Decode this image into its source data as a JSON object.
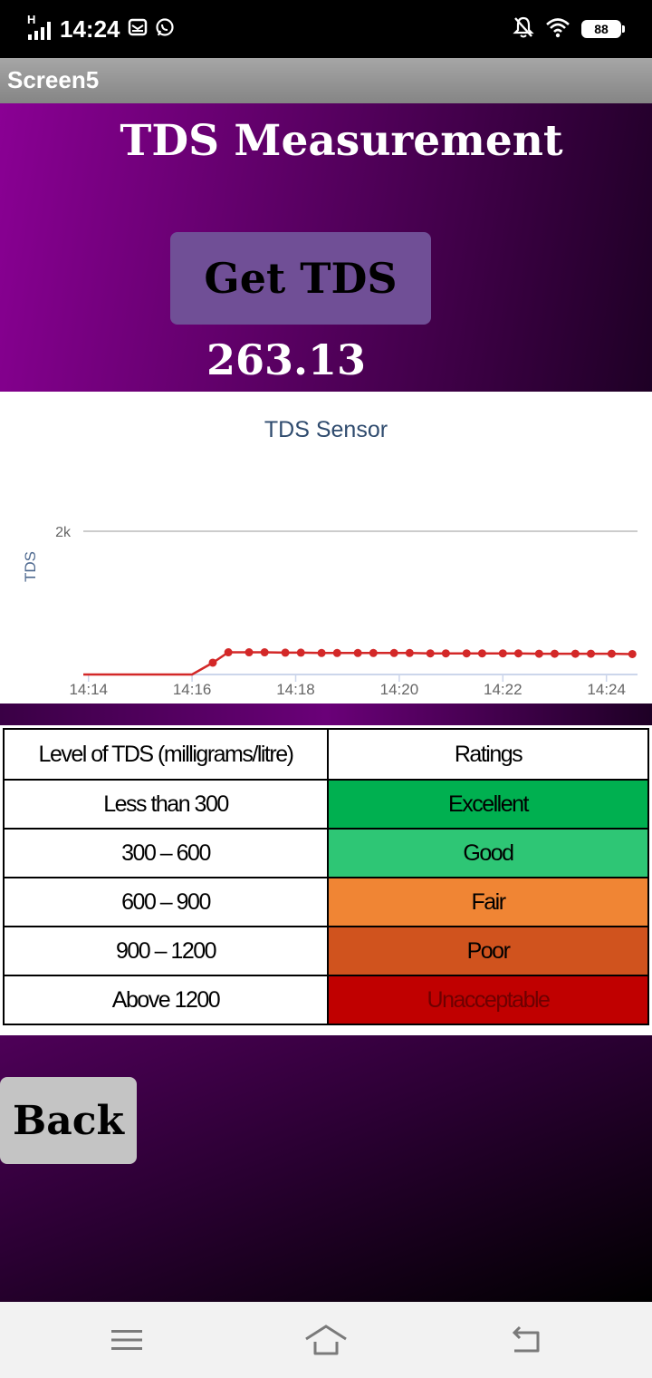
{
  "status_bar": {
    "time": "14:24",
    "network": "H",
    "battery": "88",
    "icons": [
      "signal-icon",
      "mail-icon",
      "whatsapp-icon",
      "bell-off-icon",
      "wifi-icon",
      "battery-icon"
    ]
  },
  "app": {
    "screen_title": "Screen5"
  },
  "header": {
    "title": "TDS Measurement",
    "button_label": "Get TDS",
    "tds_value": "263.13"
  },
  "chart_data": {
    "type": "line",
    "title": "TDS Sensor",
    "ylabel": "TDS",
    "xlabel": "",
    "x_ticks": [
      "14:14",
      "14:16",
      "14:18",
      "14:20",
      "14:22",
      "14:24"
    ],
    "y_ticks": [
      "2k"
    ],
    "ylim": [
      0,
      2000
    ],
    "xlim": [
      "14:13.9",
      "14:24.6"
    ],
    "grid": true,
    "color": "#d32828",
    "series": [
      {
        "x": [
          "14:13.9",
          "14:16.0",
          "14:16.4",
          "14:16.7",
          "14:17.1",
          "14:17.4",
          "14:17.8",
          "14:18.1",
          "14:18.5",
          "14:18.8",
          "14:19.2",
          "14:19.5",
          "14:19.9",
          "14:20.2",
          "14:20.6",
          "14:20.9",
          "14:21.3",
          "14:21.6",
          "14:22.0",
          "14:22.3",
          "14:22.7",
          "14:23.0",
          "14:23.4",
          "14:23.7",
          "14:24.1",
          "14:24.5"
        ],
        "y": [
          0,
          0,
          165,
          310,
          310,
          310,
          305,
          305,
          300,
          300,
          300,
          300,
          300,
          300,
          295,
          295,
          295,
          295,
          295,
          295,
          290,
          290,
          290,
          290,
          290,
          285
        ],
        "markers_from_index": 2
      }
    ]
  },
  "table": {
    "headers": [
      "Level of TDS (milligrams/litre)",
      "Ratings"
    ],
    "rows": [
      {
        "level": "Less than 300",
        "rating": "Excellent",
        "color": "#00b050"
      },
      {
        "level": "300 – 600",
        "rating": "Good",
        "color": "#2ec675"
      },
      {
        "level": "600 – 900",
        "rating": "Fair",
        "color": "#f08534"
      },
      {
        "level": "900 – 1200",
        "rating": "Poor",
        "color": "#d0531e"
      },
      {
        "level": "Above 1200",
        "rating": "Unacceptable",
        "color": "#c00000"
      }
    ]
  },
  "back_button": {
    "label": "Back"
  },
  "nav_bar": {
    "icons": [
      "menu-icon",
      "home-icon",
      "back-arrow-icon"
    ]
  }
}
